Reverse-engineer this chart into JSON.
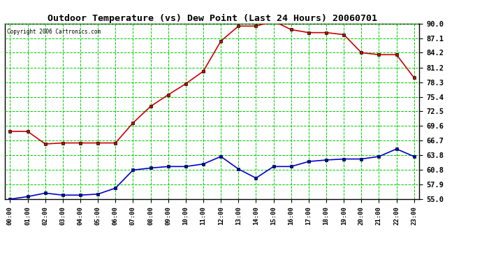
{
  "title": "Outdoor Temperature (vs) Dew Point (Last 24 Hours) 20060701",
  "copyright_text": "Copyright 2006 Cartronics.com",
  "temp_data": [
    68.5,
    68.5,
    66.0,
    66.2,
    66.2,
    66.2,
    66.2,
    70.2,
    73.5,
    75.8,
    78.0,
    80.5,
    86.5,
    89.5,
    89.5,
    90.5,
    88.8,
    88.2,
    88.2,
    87.8,
    84.2,
    83.8,
    83.8,
    79.2
  ],
  "dew_data": [
    55.0,
    55.5,
    56.2,
    55.8,
    55.8,
    56.0,
    57.2,
    60.8,
    61.2,
    61.5,
    61.5,
    62.0,
    63.5,
    61.0,
    59.2,
    61.5,
    61.5,
    62.5,
    62.8,
    63.0,
    63.0,
    63.5,
    65.0,
    63.5
  ],
  "hours": [
    0,
    1,
    2,
    3,
    4,
    5,
    6,
    7,
    8,
    9,
    10,
    11,
    12,
    13,
    14,
    15,
    16,
    17,
    18,
    19,
    20,
    21,
    22,
    23
  ],
  "xlabels": [
    "00:00",
    "01:00",
    "02:00",
    "03:00",
    "04:00",
    "05:00",
    "06:00",
    "07:00",
    "08:00",
    "09:00",
    "10:00",
    "11:00",
    "12:00",
    "13:00",
    "14:00",
    "15:00",
    "16:00",
    "17:00",
    "18:00",
    "19:00",
    "20:00",
    "21:00",
    "22:00",
    "23:00"
  ],
  "yticks": [
    55.0,
    57.9,
    60.8,
    63.8,
    66.7,
    69.6,
    72.5,
    75.4,
    78.3,
    81.2,
    84.2,
    87.1,
    90.0
  ],
  "ylim": [
    55.0,
    90.0
  ],
  "temp_color": "#cc0000",
  "dew_color": "#0000cc",
  "grid_color": "#00cc00",
  "bg_color": "#ffffff",
  "marker": "s",
  "marker_color": "#000000",
  "marker_size": 2.5,
  "line_width": 1.2
}
